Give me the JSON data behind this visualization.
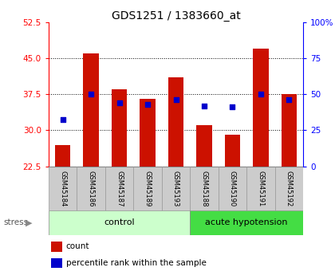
{
  "title": "GDS1251 / 1383660_at",
  "categories": [
    "GSM45184",
    "GSM45186",
    "GSM45187",
    "GSM45189",
    "GSM45193",
    "GSM45188",
    "GSM45190",
    "GSM45191",
    "GSM45192"
  ],
  "bar_values": [
    27.0,
    46.0,
    38.5,
    36.5,
    41.0,
    31.0,
    29.0,
    47.0,
    37.5
  ],
  "percentile_right": [
    32.5,
    50.0,
    44.0,
    43.0,
    46.0,
    42.0,
    41.0,
    50.0,
    46.0
  ],
  "bar_color": "#cc1100",
  "marker_color": "#0000cc",
  "left_ylim": [
    22.5,
    52.5
  ],
  "left_yticks": [
    22.5,
    30.0,
    37.5,
    45.0,
    52.5
  ],
  "right_ylim": [
    0,
    100
  ],
  "right_yticks": [
    0,
    25,
    50,
    75,
    100
  ],
  "right_yticklabels": [
    "0",
    "25",
    "50",
    "75",
    "100%"
  ],
  "groups": [
    {
      "label": "control",
      "start": 0,
      "end": 5,
      "color": "#ccffcc"
    },
    {
      "label": "acute hypotension",
      "start": 5,
      "end": 9,
      "color": "#44dd44"
    }
  ],
  "title_fontsize": 10,
  "bar_width": 0.55
}
